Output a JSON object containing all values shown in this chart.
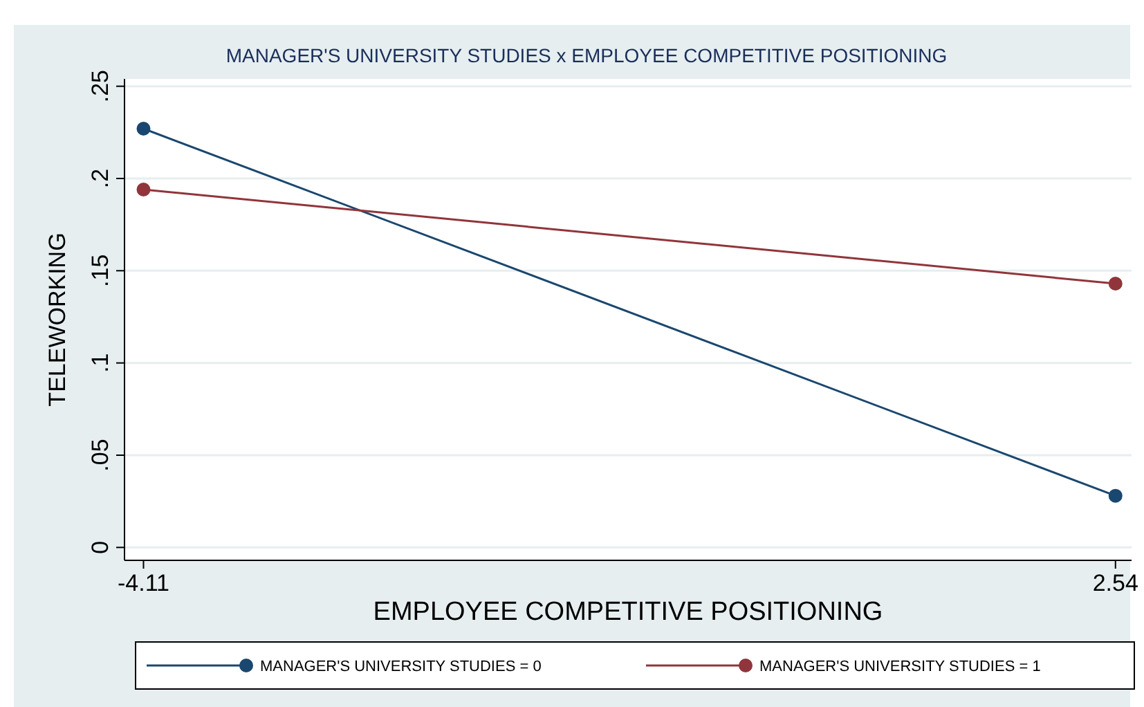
{
  "chart_data": {
    "type": "line",
    "title": "MANAGER'S UNIVERSITY STUDIES x EMPLOYEE COMPETITIVE POSITIONING",
    "xlabel": "EMPLOYEE COMPETITIVE POSITIONING",
    "ylabel": "TELEWORKING",
    "x": [
      -4.11,
      2.54
    ],
    "series": [
      {
        "name": "MANAGER'S UNIVERSITY STUDIES = 0",
        "color": "#1a476f",
        "values": [
          0.227,
          0.028
        ]
      },
      {
        "name": "MANAGER'S UNIVERSITY STUDIES = 1",
        "color": "#90353b",
        "values": [
          0.194,
          0.143
        ]
      }
    ],
    "xlim": [
      -4.24,
      2.65
    ],
    "xticks": [
      -4.11,
      2.54
    ],
    "ylim": [
      -0.007,
      0.254
    ],
    "yticks": [
      {
        "value": 0,
        "label": "0"
      },
      {
        "value": 0.05,
        "label": ".05"
      },
      {
        "value": 0.1,
        "label": ".1"
      },
      {
        "value": 0.15,
        "label": ".15"
      },
      {
        "value": 0.2,
        "label": ".2"
      },
      {
        "value": 0.25,
        "label": ".25"
      }
    ],
    "grid": "y",
    "legend": "bottom",
    "marker": "circle",
    "line_style": "solid"
  }
}
